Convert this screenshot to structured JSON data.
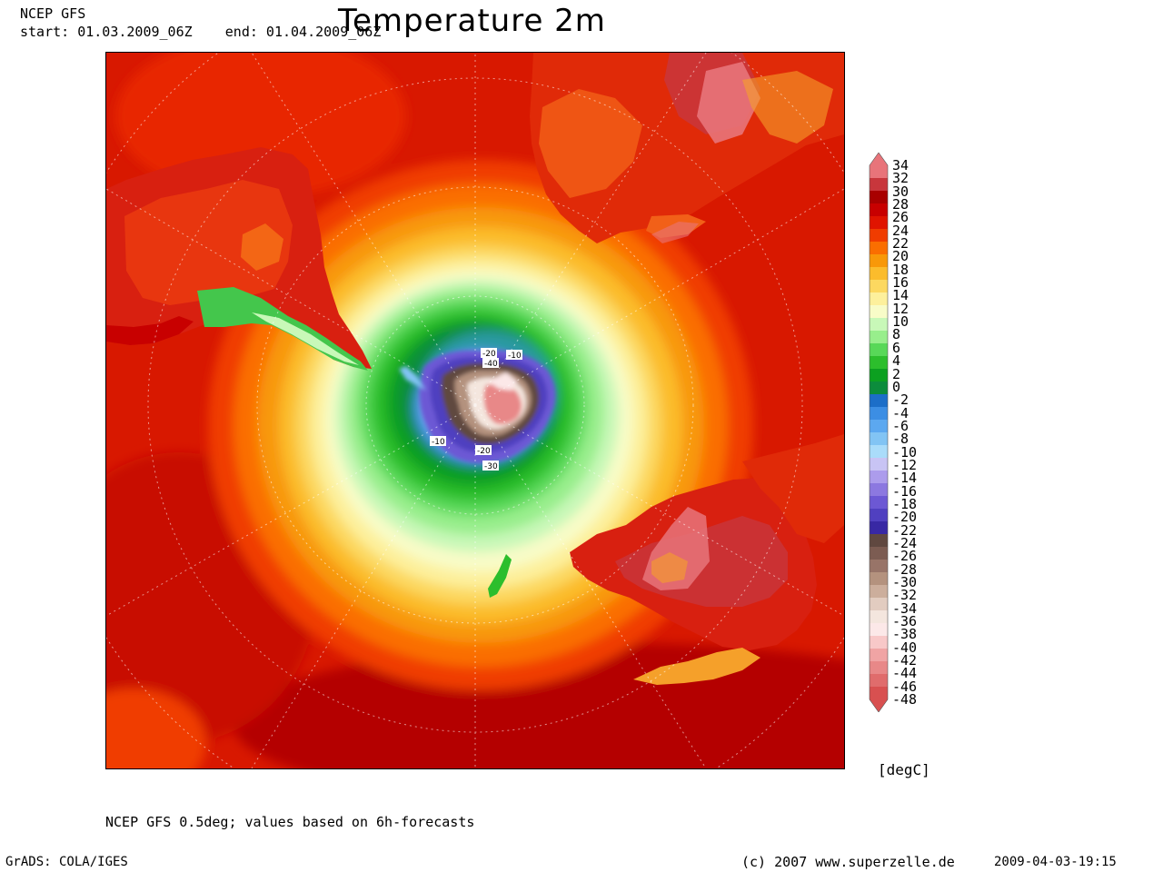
{
  "header": {
    "model": "NCEP GFS",
    "period": "start: 01.03.2009_06Z    end: 01.04.2009_06Z",
    "title": "Temperature 2m"
  },
  "colorbar": {
    "unit": "[degC]",
    "labels": [
      "34",
      "32",
      "30",
      "28",
      "26",
      "24",
      "22",
      "20",
      "18",
      "16",
      "14",
      "12",
      "10",
      "8",
      "6",
      "4",
      "2",
      "0",
      "-2",
      "-4",
      "-6",
      "-8",
      "-10",
      "-12",
      "-14",
      "-16",
      "-18",
      "-20",
      "-22",
      "-24",
      "-26",
      "-28",
      "-30",
      "-32",
      "-34",
      "-36",
      "-38",
      "-40",
      "-42",
      "-44",
      "-46",
      "-48"
    ],
    "colors": [
      "#e8747a",
      "#c8363c",
      "#a80000",
      "#c80000",
      "#e01400",
      "#f03c00",
      "#fa6e00",
      "#f89808",
      "#fbbc2c",
      "#fcd860",
      "#fdf09c",
      "#f8fcc8",
      "#c8f8b8",
      "#98ee8c",
      "#58d858",
      "#2cbe2c",
      "#0ca020",
      "#0c8c3c",
      "#1c6ec8",
      "#3c8ee4",
      "#5ca8f0",
      "#82c4f4",
      "#aadcfa",
      "#c8c4f4",
      "#ac9cec",
      "#8c78e0",
      "#6c58d4",
      "#5040c0",
      "#3828a4",
      "#604840",
      "#7c5c52",
      "#987468",
      "#b4927e",
      "#ccae9c",
      "#e2ccc0",
      "#f4e6de",
      "#fce8e8",
      "#f8c8c8",
      "#f0a4a4",
      "#e88888",
      "#e06c6c",
      "#d85050"
    ]
  },
  "map": {
    "contour_labels": [
      "-20",
      "-10",
      "-40",
      "-10",
      "-20",
      "-30"
    ]
  },
  "footer": {
    "source": "NCEP GFS 0.5deg; values based on 6h-forecasts",
    "software": "GrADS: COLA/IGES",
    "copyright": "(c) 2007 www.superzelle.de",
    "timestamp": "2009-04-03-19:15"
  }
}
